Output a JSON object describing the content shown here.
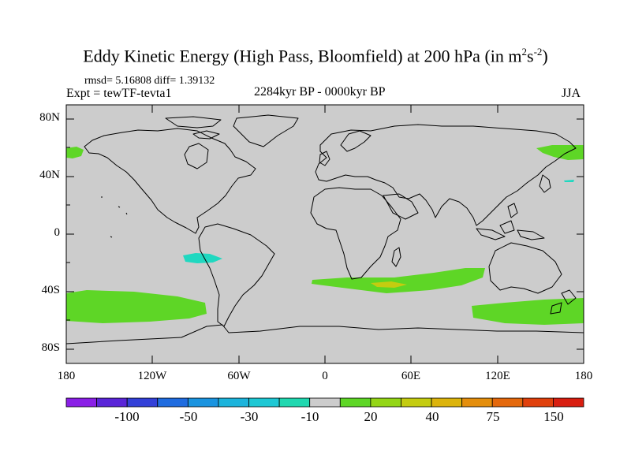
{
  "title": {
    "main": "Eddy Kinetic Energy (High Pass, Bloomfield) at 200 hPa (in m",
    "sup1": "2",
    "mid": "s",
    "sup2": "-2",
    "close": ")"
  },
  "stats": "rmsd= 5.16808 diff= 1.39132",
  "expt": "Expt = tewTF-tevta1",
  "period": "2284kyr BP - 0000kyr BP",
  "season": "JJA",
  "lat_labels": [
    "80N",
    "40N",
    "0",
    "40S",
    "80S"
  ],
  "lon_labels": [
    "180",
    "120W",
    "60W",
    "0",
    "60E",
    "120E",
    "180"
  ],
  "colorbar": {
    "colors": [
      "#8a1fe6",
      "#5a25d8",
      "#3340d8",
      "#1f6ce0",
      "#1a94e0",
      "#1cb4dc",
      "#1ec8d4",
      "#20d8b0",
      "#cccccc",
      "#5ed626",
      "#94d616",
      "#c4cc10",
      "#dcb40c",
      "#e48e0c",
      "#e4680c",
      "#e0400c",
      "#d81e10"
    ],
    "labels": [
      "-100",
      "-50",
      "-30",
      "-10",
      "20",
      "40",
      "75",
      "150"
    ]
  },
  "colors": {
    "ocean": "#cccccc",
    "positive": "#5ed626",
    "strong": "#c4cc10",
    "negative": "#20d8c0"
  }
}
